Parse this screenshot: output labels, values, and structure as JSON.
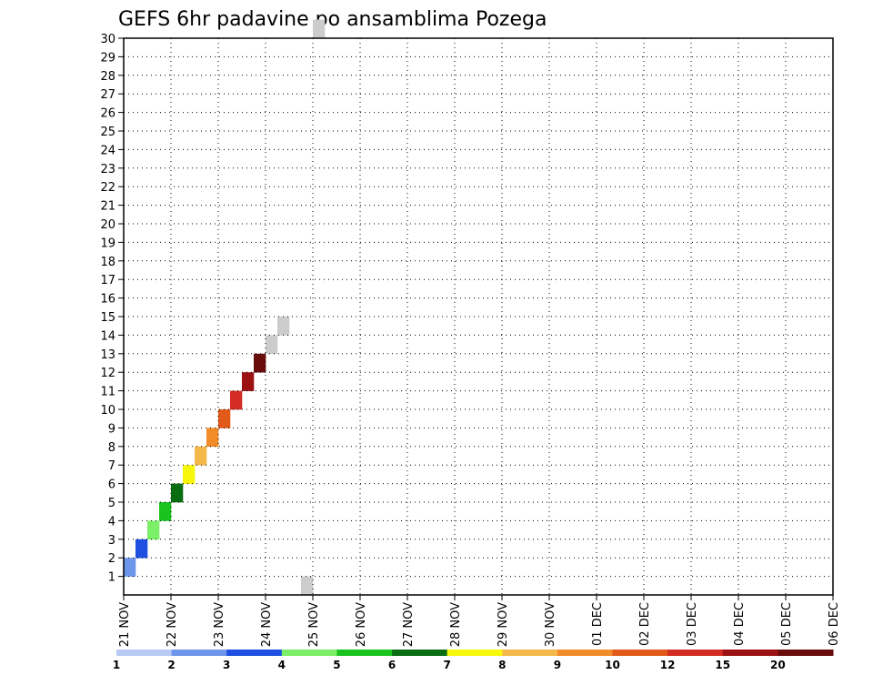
{
  "chart_data": {
    "type": "heatmap",
    "title": "GEFS 6hr padavine po ansamblima Pozega",
    "x_ticks": [
      "21 NOV",
      "22 NOV",
      "23 NOV",
      "24 NOV",
      "25 NOV",
      "26 NOV",
      "27 NOV",
      "28 NOV",
      "29 NOV",
      "30 NOV",
      "01 DEC",
      "02 DEC",
      "03 DEC",
      "04 DEC",
      "05 DEC",
      "06 DEC"
    ],
    "y_ticks": [
      1,
      2,
      3,
      4,
      5,
      6,
      7,
      8,
      9,
      10,
      11,
      12,
      13,
      14,
      15,
      16,
      17,
      18,
      19,
      20,
      21,
      22,
      23,
      24,
      25,
      26,
      27,
      28,
      29,
      30
    ],
    "xlim": [
      0,
      60
    ],
    "ylim": [
      0,
      30
    ],
    "grid": true,
    "time_step_hours": 6,
    "colorbar": {
      "levels": [
        "1",
        "2",
        "3",
        "4",
        "5",
        "6",
        "7",
        "8",
        "9",
        "10",
        "12",
        "15",
        "20"
      ],
      "colors": [
        "#b9cbf4",
        "#6d95ea",
        "#1e4fe0",
        "#7bef68",
        "#19c41e",
        "#0b6d12",
        "#f7f70c",
        "#f5b84a",
        "#f28c28",
        "#e25a19",
        "#d32c22",
        "#9c1212",
        "#6b0c0c"
      ]
    },
    "cells": [
      [
        0,
        1,
        1
      ],
      [
        1,
        2,
        2
      ],
      [
        2,
        3,
        3
      ],
      [
        3,
        4,
        4
      ],
      [
        4,
        5,
        5
      ],
      [
        5,
        6,
        6
      ],
      [
        6,
        7,
        7
      ],
      [
        7,
        8,
        8
      ],
      [
        8,
        9,
        9
      ],
      [
        9,
        10,
        10
      ],
      [
        10,
        11,
        11
      ],
      [
        11,
        12,
        12
      ],
      [
        12,
        13,
        13
      ],
      [
        13,
        14,
        14
      ],
      [
        15,
        0,
        15
      ],
      [
        16,
        30,
        14
      ]
    ]
  }
}
